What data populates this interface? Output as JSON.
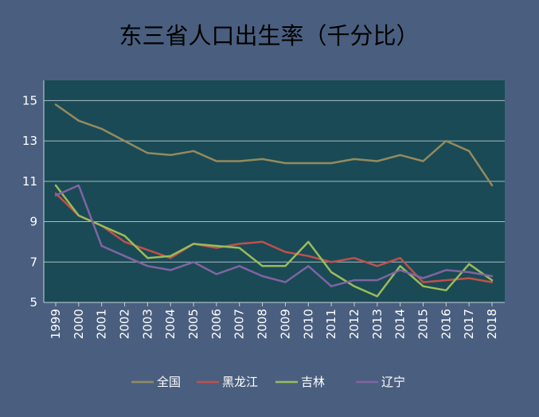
{
  "chart_data": {
    "type": "line",
    "title": "东三省人口出生率（千分比）",
    "xlabel": "",
    "ylabel": "",
    "ylim": [
      5,
      16
    ],
    "yticks": [
      5,
      7,
      9,
      11,
      13,
      15
    ],
    "grid": true,
    "legend_position": "bottom",
    "x": [
      "1999",
      "2000",
      "2001",
      "2002",
      "2003",
      "2004",
      "2005",
      "2006",
      "2007",
      "2008",
      "2009",
      "2010",
      "2011",
      "2012",
      "2013",
      "2014",
      "2015",
      "2016",
      "2017",
      "2018"
    ],
    "series": [
      {
        "name": "全国",
        "color": "#958a5e",
        "values": [
          14.8,
          14.0,
          13.6,
          13.0,
          12.4,
          12.3,
          12.5,
          12.0,
          12.0,
          12.1,
          11.9,
          11.9,
          11.9,
          12.1,
          12.0,
          12.3,
          12.0,
          13.0,
          12.5,
          10.8
        ]
      },
      {
        "name": "黑龙江",
        "color": "#c0504d",
        "values": [
          10.4,
          9.3,
          8.8,
          8.0,
          7.6,
          7.2,
          7.9,
          7.7,
          7.9,
          8.0,
          7.5,
          7.3,
          7.0,
          7.2,
          6.8,
          7.2,
          6.0,
          6.1,
          6.2,
          6.0
        ]
      },
      {
        "name": "吉林",
        "color": "#9bbb59",
        "values": [
          10.8,
          9.3,
          8.8,
          8.3,
          7.2,
          7.3,
          7.9,
          7.8,
          7.7,
          6.8,
          6.8,
          8.0,
          6.5,
          5.8,
          5.3,
          6.8,
          5.8,
          5.6,
          6.9,
          6.1
        ]
      },
      {
        "name": "辽宁",
        "color": "#8064a2",
        "values": [
          10.3,
          10.8,
          7.8,
          7.3,
          6.8,
          6.6,
          7.0,
          6.4,
          6.8,
          6.3,
          6.0,
          6.8,
          5.8,
          6.1,
          6.1,
          6.6,
          6.2,
          6.6,
          6.5,
          6.3
        ]
      }
    ]
  }
}
